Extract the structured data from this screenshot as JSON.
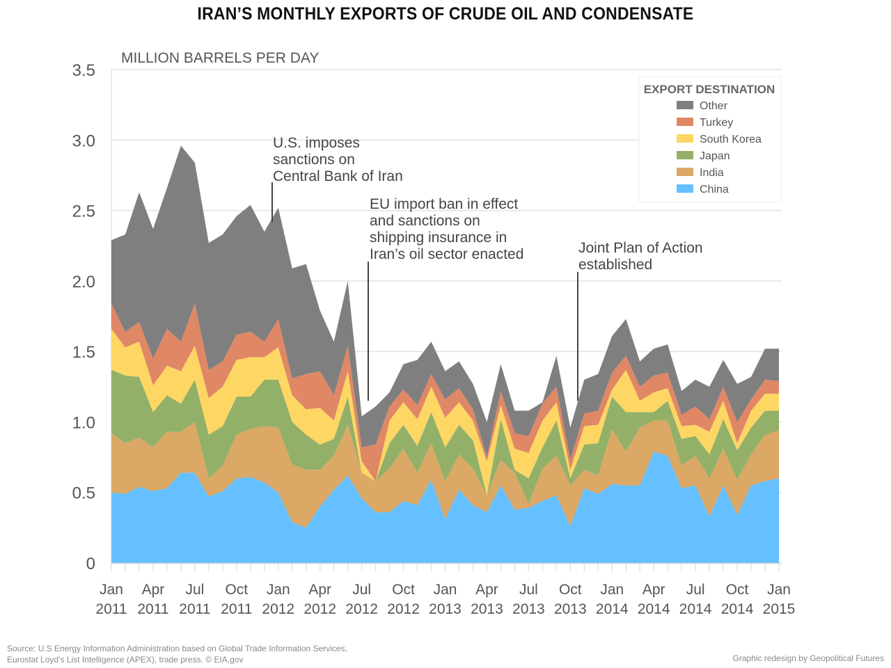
{
  "page": {
    "title": "IRAN’S MONTHLY EXPORTS OF CRUDE OIL AND CONDENSATE",
    "source_line1": "Source: U.S Energy Information Administration based on Global Trade Information Services,",
    "source_line2": "Eurostat Loyd’s List Intelligence (APEX), trade press. © EIA.gov",
    "credit": "Graphic redesign by Geopolitical Futures"
  },
  "chart_data": {
    "type": "area",
    "stacked": true,
    "title": "IRAN’S MONTHLY EXPORTS OF CRUDE OIL AND CONDENSATE",
    "ylabel": "MILLION BARRELS PER DAY",
    "xlabel": "",
    "ylim": [
      0,
      3.5
    ],
    "yticks": [
      0,
      0.5,
      1.0,
      1.5,
      2.0,
      2.5,
      3.0,
      3.5
    ],
    "ytick_labels": [
      "0",
      "0.5",
      "1.0",
      "1.5",
      "2.0",
      "2.5",
      "3.0",
      "3.5"
    ],
    "grid": true,
    "x_start": "Jan 2011",
    "x_end": "Jan 2015",
    "x": [
      "Jan 2011",
      "Feb 2011",
      "Mar 2011",
      "Apr 2011",
      "May 2011",
      "Jun 2011",
      "Jul 2011",
      "Aug 2011",
      "Sep 2011",
      "Oct 2011",
      "Nov 2011",
      "Dec 2011",
      "Jan 2012",
      "Feb 2012",
      "Mar 2012",
      "Apr 2012",
      "May 2012",
      "Jun 2012",
      "Jul 2012",
      "Aug 2012",
      "Sep 2012",
      "Oct 2012",
      "Nov 2012",
      "Dec 2012",
      "Jan 2013",
      "Feb 2013",
      "Mar 2013",
      "Apr 2013",
      "May 2013",
      "Jun 2013",
      "Jul 2013",
      "Aug 2013",
      "Sep 2013",
      "Oct 2013",
      "Nov 2013",
      "Dec 2013",
      "Jan 2014",
      "Feb 2014",
      "Mar 2014",
      "Apr 2014",
      "May 2014",
      "Jun 2014",
      "Jul 2014",
      "Aug 2014",
      "Sep 2014",
      "Oct 2014",
      "Nov 2014",
      "Dec 2014",
      "Jan 2015"
    ],
    "xtick_labels": [
      {
        "month_index": 0,
        "line1": "Jan",
        "line2": "2011"
      },
      {
        "month_index": 3,
        "line1": "Apr",
        "line2": "2011"
      },
      {
        "month_index": 6,
        "line1": "Jul",
        "line2": "2011"
      },
      {
        "month_index": 9,
        "line1": "Oct",
        "line2": "2011"
      },
      {
        "month_index": 12,
        "line1": "Jan",
        "line2": "2012"
      },
      {
        "month_index": 15,
        "line1": "Apr",
        "line2": "2012"
      },
      {
        "month_index": 18,
        "line1": "Jul",
        "line2": "2012"
      },
      {
        "month_index": 21,
        "line1": "Oct",
        "line2": "2012"
      },
      {
        "month_index": 24,
        "line1": "Jan",
        "line2": "2013"
      },
      {
        "month_index": 27,
        "line1": "Apr",
        "line2": "2013"
      },
      {
        "month_index": 30,
        "line1": "Jul",
        "line2": "2013"
      },
      {
        "month_index": 33,
        "line1": "Oct",
        "line2": "2013"
      },
      {
        "month_index": 36,
        "line1": "Jan",
        "line2": "2014"
      },
      {
        "month_index": 39,
        "line1": "Apr",
        "line2": "2014"
      },
      {
        "month_index": 42,
        "line1": "Jul",
        "line2": "2014"
      },
      {
        "month_index": 45,
        "line1": "Oct",
        "line2": "2014"
      },
      {
        "month_index": 48,
        "line1": "Jan",
        "line2": "2015"
      }
    ],
    "legend": {
      "title": "EXPORT DESTINATION",
      "position": "top-right",
      "order": [
        "Other",
        "Turkey",
        "South Korea",
        "Japan",
        "India",
        "China"
      ]
    },
    "series": [
      {
        "name": "China",
        "color": "#66BFFF",
        "values": [
          0.5,
          0.49,
          0.54,
          0.51,
          0.53,
          0.64,
          0.64,
          0.47,
          0.51,
          0.6,
          0.61,
          0.57,
          0.5,
          0.29,
          0.25,
          0.4,
          0.52,
          0.62,
          0.46,
          0.36,
          0.36,
          0.44,
          0.41,
          0.59,
          0.31,
          0.52,
          0.41,
          0.36,
          0.55,
          0.38,
          0.39,
          0.44,
          0.48,
          0.26,
          0.53,
          0.49,
          0.56,
          0.55,
          0.55,
          0.79,
          0.76,
          0.53,
          0.55,
          0.33,
          0.55,
          0.34,
          0.55,
          0.58,
          0.6
        ]
      },
      {
        "name": "India",
        "color": "#DBA865",
        "values": [
          0.42,
          0.36,
          0.35,
          0.31,
          0.4,
          0.29,
          0.36,
          0.13,
          0.18,
          0.31,
          0.34,
          0.4,
          0.46,
          0.41,
          0.41,
          0.26,
          0.24,
          0.36,
          0.18,
          0.22,
          0.31,
          0.37,
          0.23,
          0.26,
          0.27,
          0.25,
          0.26,
          0.12,
          0.18,
          0.26,
          0.03,
          0.23,
          0.28,
          0.29,
          0.13,
          0.13,
          0.39,
          0.24,
          0.41,
          0.22,
          0.25,
          0.16,
          0.21,
          0.27,
          0.26,
          0.25,
          0.22,
          0.33,
          0.34
        ]
      },
      {
        "name": "Japan",
        "color": "#93B068",
        "values": [
          0.45,
          0.48,
          0.43,
          0.25,
          0.26,
          0.2,
          0.3,
          0.31,
          0.28,
          0.27,
          0.23,
          0.33,
          0.34,
          0.3,
          0.25,
          0.18,
          0.12,
          0.2,
          0.0,
          0.0,
          0.18,
          0.17,
          0.19,
          0.22,
          0.24,
          0.21,
          0.2,
          0.0,
          0.29,
          0.02,
          0.18,
          0.15,
          0.25,
          0.05,
          0.18,
          0.23,
          0.23,
          0.28,
          0.11,
          0.06,
          0.14,
          0.19,
          0.14,
          0.17,
          0.21,
          0.21,
          0.19,
          0.17,
          0.14
        ]
      },
      {
        "name": "South Korea",
        "color": "#FDD663",
        "values": [
          0.29,
          0.2,
          0.25,
          0.19,
          0.21,
          0.23,
          0.24,
          0.26,
          0.28,
          0.26,
          0.28,
          0.16,
          0.23,
          0.19,
          0.18,
          0.26,
          0.13,
          0.18,
          0.08,
          0.0,
          0.16,
          0.16,
          0.19,
          0.18,
          0.21,
          0.16,
          0.14,
          0.24,
          0.1,
          0.15,
          0.18,
          0.19,
          0.13,
          0.06,
          0.13,
          0.13,
          0.05,
          0.3,
          0.08,
          0.14,
          0.09,
          0.09,
          0.08,
          0.16,
          0.13,
          0.05,
          0.12,
          0.12,
          0.12
        ]
      },
      {
        "name": "Turkey",
        "color": "#E08766",
        "values": [
          0.18,
          0.11,
          0.14,
          0.19,
          0.26,
          0.21,
          0.3,
          0.2,
          0.18,
          0.18,
          0.18,
          0.11,
          0.2,
          0.12,
          0.25,
          0.26,
          0.18,
          0.18,
          0.1,
          0.26,
          0.1,
          0.09,
          0.1,
          0.09,
          0.13,
          0.1,
          0.08,
          0.03,
          0.1,
          0.11,
          0.12,
          0.12,
          0.11,
          0.07,
          0.09,
          0.1,
          0.12,
          0.1,
          0.1,
          0.12,
          0.11,
          0.08,
          0.13,
          0.09,
          0.1,
          0.15,
          0.08,
          0.1,
          0.09
        ]
      },
      {
        "name": "Other",
        "color": "#7F7F7F",
        "values": [
          0.45,
          0.69,
          0.92,
          0.92,
          1.0,
          1.39,
          1.0,
          0.9,
          0.9,
          0.84,
          0.9,
          0.78,
          0.79,
          0.78,
          0.78,
          0.43,
          0.38,
          0.46,
          0.22,
          0.27,
          0.1,
          0.18,
          0.32,
          0.23,
          0.2,
          0.19,
          0.18,
          0.25,
          0.19,
          0.16,
          0.18,
          0.01,
          0.22,
          0.23,
          0.24,
          0.26,
          0.26,
          0.26,
          0.18,
          0.19,
          0.2,
          0.17,
          0.19,
          0.23,
          0.19,
          0.27,
          0.16,
          0.22,
          0.23
        ]
      }
    ],
    "annotations": [
      {
        "month_index": 11.5,
        "lines": [
          "U.S. imposes",
          "sanctions on",
          "Central Bank of Iran"
        ],
        "marker_value": 2.42
      },
      {
        "month_index": 18.5,
        "lines": [
          "EU import ban in effect",
          "and sanctions on",
          "shipping insurance in",
          "Iran’s oil sector enacted"
        ],
        "marker_value": 1.15
      },
      {
        "month_index": 33.5,
        "lines": [
          "Joint Plan of Action",
          "established"
        ],
        "marker_value": 1.15
      }
    ]
  }
}
